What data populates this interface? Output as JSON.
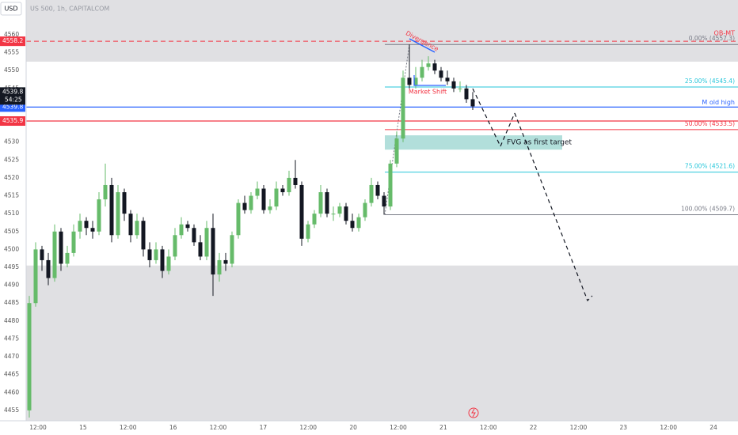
{
  "chart_data": {
    "type": "candlestick",
    "title": "US 500, 1h, CAPITALCOM",
    "y_label": "USD",
    "xticks": [
      "12:00",
      "15",
      "12:00",
      "16",
      "12:00",
      "17",
      "12:00",
      "20",
      "12:00",
      "21",
      "12:00",
      "22",
      "12:00",
      "23",
      "12:00",
      "24"
    ],
    "ylim": [
      4452.1,
      4563.1
    ],
    "yticks": [
      4455,
      4460,
      4465,
      4470,
      4475,
      4480,
      4485,
      4490,
      4495,
      4500,
      4505,
      4510,
      4515,
      4520,
      4525,
      4530,
      4535,
      4540,
      4545,
      4550,
      4555,
      4560
    ],
    "candles": {
      "open": [
        4455,
        4485,
        4500,
        4497,
        4492,
        4505,
        4496,
        4499,
        4505,
        4508,
        4506,
        4505,
        4514,
        4518,
        4504,
        4516,
        4510,
        4504,
        4508,
        4500,
        4497,
        4500,
        4494,
        4498,
        4504,
        4507,
        4506,
        4502,
        4498,
        4506,
        4493,
        4497,
        4496,
        4504,
        4513,
        4511,
        4515,
        4517,
        4511,
        4512,
        4517,
        4516,
        4520,
        4518,
        4503,
        4507,
        4510,
        4516,
        4510,
        4510,
        4512,
        4508,
        4506,
        4509,
        4513,
        4518,
        4515,
        4512,
        4524,
        4531,
        4548,
        4546,
        4548,
        4551,
        4552,
        4550,
        4548,
        4547,
        4545,
        4545,
        4542
      ],
      "high": [
        4487,
        4502,
        4501,
        4499,
        4507,
        4506,
        4501,
        4507,
        4510,
        4509,
        4508,
        4516,
        4524,
        4520,
        4518,
        4517,
        4511,
        4510,
        4509,
        4502,
        4502,
        4501,
        4500,
        4506,
        4509,
        4508,
        4507,
        4504,
        4508,
        4510,
        4499,
        4499,
        4505,
        4514,
        4515,
        4516,
        4519,
        4518,
        4514,
        4519,
        4518,
        4522,
        4525,
        4519,
        4508,
        4511,
        4518,
        4517,
        4512,
        4513,
        4513,
        4510,
        4510,
        4514,
        4520,
        4519,
        4516,
        4525,
        4533,
        4550,
        4557.3,
        4551,
        4553,
        4554,
        4553,
        4551,
        4550,
        4548,
        4547,
        4546,
        4544
      ],
      "low": [
        4453,
        4484,
        4494,
        4490,
        4491,
        4494,
        4495,
        4498,
        4503,
        4504,
        4503,
        4504,
        4512,
        4502,
        4503,
        4508,
        4502,
        4503,
        4498,
        4495,
        4496,
        4492,
        4493,
        4497,
        4503,
        4505,
        4501,
        4497,
        4497,
        4487,
        4491,
        4494,
        4495,
        4503,
        4510,
        4510,
        4514,
        4510,
        4510,
        4511,
        4515,
        4515,
        4517,
        4501,
        4502,
        4506,
        4509,
        4509,
        4508,
        4509,
        4507,
        4505,
        4505,
        4508,
        4512,
        4514,
        4509.7,
        4511,
        4523,
        4530,
        4545,
        4545,
        4547,
        4550,
        4549,
        4547,
        4546,
        4544,
        4544,
        4541,
        4539
      ],
      "close": [
        4485,
        4500,
        4497,
        4492,
        4505,
        4496,
        4499,
        4505,
        4508,
        4506,
        4505,
        4514,
        4518,
        4504,
        4516,
        4510,
        4504,
        4508,
        4500,
        4497,
        4500,
        4494,
        4498,
        4504,
        4507,
        4506,
        4502,
        4498,
        4506,
        4493,
        4497,
        4496,
        4504,
        4513,
        4511,
        4515,
        4517,
        4511,
        4512,
        4517,
        4516,
        4520,
        4518,
        4503,
        4507,
        4510,
        4516,
        4510,
        4510,
        4512,
        4508,
        4506,
        4509,
        4513,
        4518,
        4515,
        4512,
        4524,
        4531,
        4548,
        4546,
        4548,
        4551,
        4552,
        4550,
        4548,
        4547,
        4545,
        4545,
        4542,
        4540
      ]
    },
    "up_color": "#66bb6a",
    "down_color": "#131722",
    "price_lines": [
      {
        "value": 4558.2,
        "color": "#f23645",
        "dashed": true
      },
      {
        "value": 4539.8,
        "color": "#2962ff",
        "dashed": false
      },
      {
        "value": 4535.9,
        "color": "#f23645",
        "dashed": false
      }
    ],
    "last_price": {
      "value": 4539.8,
      "countdown": "54:25"
    },
    "fib_levels": [
      {
        "value": 4557.3,
        "label": "0.00% (4557.3)",
        "color": "#787b86"
      },
      {
        "value": 4545.4,
        "label": "25.00% (4545.4)",
        "color": "#26c6da"
      },
      {
        "value": 4533.5,
        "label": "50.00% (4533.5)",
        "color": "#f23645"
      },
      {
        "value": 4521.6,
        "label": "75.00% (4521.6)",
        "color": "#26c6da"
      },
      {
        "value": 4509.7,
        "label": "100.00% (4509.7)",
        "color": "#787b86"
      }
    ],
    "shade_above": 4552.5,
    "shade_below": 4495.5,
    "fvg": {
      "from": 4527.9,
      "to": 4531.9,
      "label": "FVG as first target",
      "color": "#b2dfdb"
    },
    "annotations": [
      "Divergence",
      "Market Shift",
      "M old high",
      "OB-MT"
    ]
  }
}
